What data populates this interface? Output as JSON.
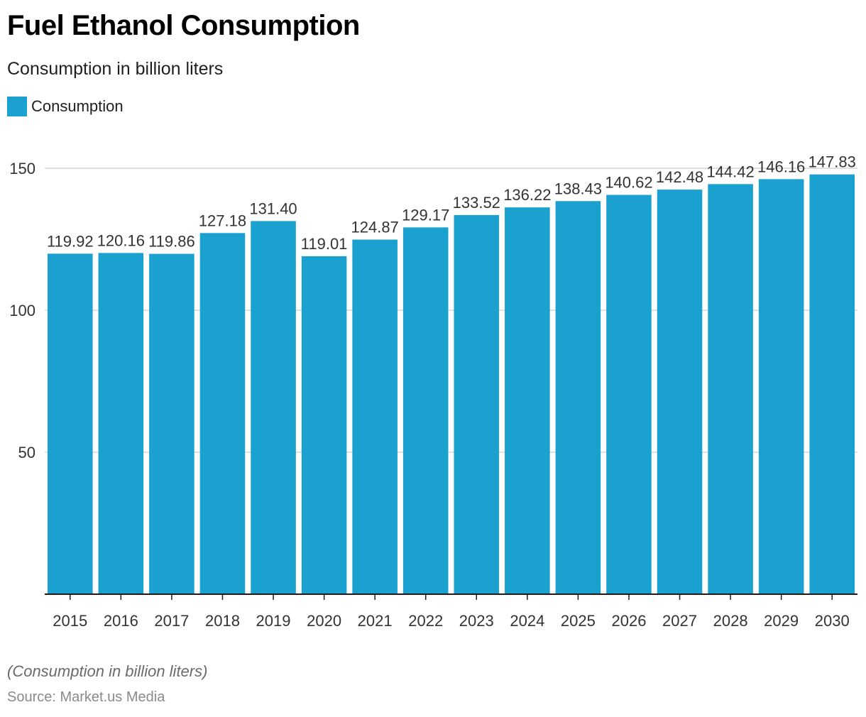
{
  "header": {
    "title": "Fuel Ethanol Consumption",
    "subtitle": "Consumption in billion liters"
  },
  "legend": {
    "label": "Consumption"
  },
  "footer": {
    "note": "(Consumption in billion liters)",
    "source": "Source: Market.us Media"
  },
  "colors": {
    "bar": "#1ba1cf",
    "grid": "#d6d6d6",
    "axis": "#1a1a1a",
    "label": "#333333"
  },
  "chart_data": {
    "type": "bar",
    "title": "Fuel Ethanol Consumption",
    "subtitle": "Consumption in billion liters",
    "xlabel": "",
    "ylabel": "",
    "categories": [
      "2015",
      "2016",
      "2017",
      "2018",
      "2019",
      "2020",
      "2021",
      "2022",
      "2023",
      "2024",
      "2025",
      "2026",
      "2027",
      "2028",
      "2029",
      "2030"
    ],
    "series": [
      {
        "name": "Consumption",
        "values": [
          119.92,
          120.16,
          119.86,
          127.18,
          131.4,
          119.01,
          124.87,
          129.17,
          133.52,
          136.22,
          138.43,
          140.62,
          142.48,
          144.42,
          146.16,
          147.83
        ],
        "labels": [
          "119.92",
          "120.16",
          "119.86",
          "127.18",
          "131.40",
          "119.01",
          "124.87",
          "129.17",
          "133.52",
          "136.22",
          "138.43",
          "140.62",
          "142.48",
          "144.42",
          "146.16",
          "147.83"
        ]
      }
    ],
    "yticks": [
      50,
      100,
      150
    ],
    "ylim": [
      0,
      150
    ],
    "grid": true,
    "legend": "top-left"
  }
}
